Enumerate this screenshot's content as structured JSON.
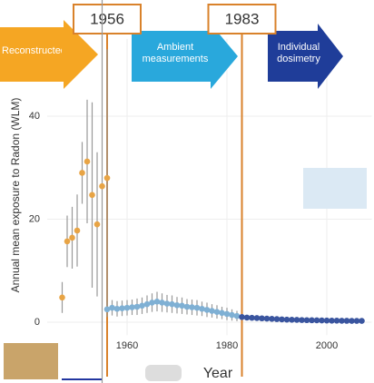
{
  "chart_data": {
    "type": "scatter",
    "ylabel": "Annual mean exposure to Radon (WLM)",
    "xlabel": "Year",
    "xlim": [
      1944,
      2009
    ],
    "ylim": [
      -2.5,
      55
    ],
    "xticks": [
      1960,
      1980,
      2000
    ],
    "yticks": [
      0,
      20,
      40
    ],
    "grid": true,
    "vlines": [
      1956,
      1983
    ],
    "phases": [
      {
        "name": "Reconstructed",
        "color": "#f5a623"
      },
      {
        "name": "Ambient measurements",
        "color": "#29a8dc"
      },
      {
        "name": "Individual dosimetry",
        "color": "#1f3d99"
      }
    ],
    "series": [
      {
        "color": "#e8a445",
        "x": [
          1947,
          1948,
          1949,
          1950,
          1951,
          1952,
          1953,
          1954,
          1955,
          1956
        ],
        "values": [
          4.8,
          15.7,
          16.4,
          17.8,
          29,
          31.2,
          24.7,
          19,
          26.4,
          28
        ],
        "errors": [
          3,
          5,
          6,
          7,
          6,
          12,
          18,
          14,
          40,
          25
        ]
      },
      {
        "color": "#7fb0d4",
        "x": [
          1956,
          1957,
          1958,
          1959,
          1960,
          1961,
          1962,
          1963,
          1964,
          1965,
          1966,
          1967,
          1968,
          1969,
          1970,
          1971,
          1972,
          1973,
          1974,
          1975,
          1976,
          1977,
          1978,
          1979,
          1980,
          1981,
          1982
        ],
        "values": [
          2.5,
          2.8,
          2.6,
          2.7,
          2.8,
          2.9,
          3,
          3.2,
          3.5,
          3.8,
          4,
          3.8,
          3.6,
          3.5,
          3.3,
          3.2,
          3,
          2.9,
          2.8,
          2.6,
          2.4,
          2.2,
          2,
          1.8,
          1.6,
          1.4,
          1.2
        ],
        "errors": [
          1.5,
          1.5,
          1.5,
          1.5,
          1.5,
          1.5,
          1.6,
          1.6,
          1.7,
          1.8,
          1.9,
          1.8,
          1.7,
          1.7,
          1.6,
          1.6,
          1.5,
          1.5,
          1.5,
          1.4,
          1.4,
          1.3,
          1.3,
          1.2,
          1.2,
          1.1,
          1
        ]
      },
      {
        "color": "#3a559f",
        "x": [
          1983,
          1984,
          1985,
          1986,
          1987,
          1988,
          1989,
          1990,
          1991,
          1992,
          1993,
          1994,
          1995,
          1996,
          1997,
          1998,
          1999,
          2000,
          2001,
          2002,
          2003,
          2004,
          2005,
          2006,
          2007
        ],
        "values": [
          1,
          0.9,
          0.85,
          0.8,
          0.75,
          0.7,
          0.65,
          0.6,
          0.55,
          0.5,
          0.48,
          0.45,
          0.42,
          0.4,
          0.38,
          0.36,
          0.34,
          0.32,
          0.3,
          0.3,
          0.28,
          0.27,
          0.26,
          0.25,
          0.25
        ]
      }
    ]
  }
}
